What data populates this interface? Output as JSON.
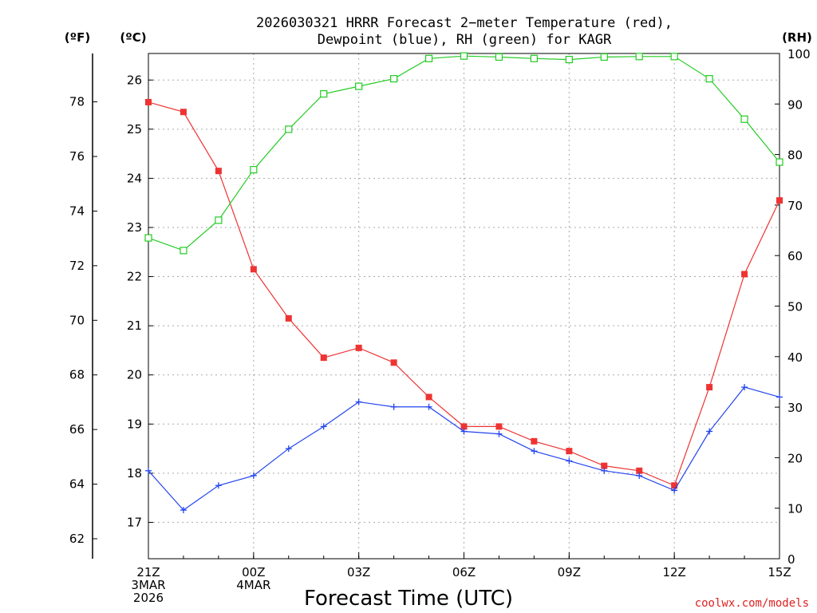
{
  "chart_data": {
    "type": "line",
    "title_lines": [
      "2026030321 HRRR Forecast 2−meter Temperature (red),",
      "Dewpoint (blue), RH (green) for KAGR"
    ],
    "unit_labels": {
      "fahrenheit": "(ºF)",
      "celsius": "(ºC)",
      "rh": "(RH)"
    },
    "xlabel": "Forecast Time (UTC)",
    "credit": "coolwx.com/models",
    "x": [
      0,
      1,
      2,
      3,
      4,
      5,
      6,
      7,
      8,
      9,
      10,
      11,
      12,
      13,
      14,
      15,
      16,
      17,
      18
    ],
    "x_ticks": [
      {
        "x": 0,
        "lines": [
          "21Z",
          "3MAR",
          "2026"
        ]
      },
      {
        "x": 3,
        "lines": [
          "00Z",
          "4MAR"
        ]
      },
      {
        "x": 6,
        "lines": [
          "03Z"
        ]
      },
      {
        "x": 9,
        "lines": [
          "06Z"
        ]
      },
      {
        "x": 12,
        "lines": [
          "09Z"
        ]
      },
      {
        "x": 15,
        "lines": [
          "12Z"
        ]
      },
      {
        "x": 18,
        "lines": [
          "15Z"
        ]
      }
    ],
    "celsius_range": [
      16.26,
      26.54
    ],
    "celsius_ticks": [
      17,
      18,
      19,
      20,
      21,
      22,
      23,
      24,
      25,
      26
    ],
    "fahrenheit_ticks": [
      62,
      64,
      66,
      68,
      70,
      72,
      74,
      76,
      78
    ],
    "rh_range": [
      0,
      100
    ],
    "rh_ticks": [
      0,
      10,
      20,
      30,
      40,
      50,
      60,
      70,
      80,
      90,
      100
    ],
    "series": [
      {
        "name": "Temperature",
        "units": "C",
        "color": "#ee3333",
        "marker": "filled-square",
        "values": [
          25.55,
          25.35,
          24.15,
          22.15,
          21.15,
          20.35,
          20.55,
          20.25,
          19.55,
          18.95,
          18.95,
          18.65,
          18.45,
          18.15,
          18.05,
          17.75,
          19.75,
          22.05,
          23.55
        ]
      },
      {
        "name": "Dewpoint",
        "units": "C",
        "color": "#2244ee",
        "marker": "plus",
        "values": [
          18.05,
          17.25,
          17.75,
          17.95,
          18.5,
          18.95,
          19.45,
          19.35,
          19.35,
          18.85,
          18.8,
          18.45,
          18.25,
          18.05,
          17.95,
          17.65,
          18.85,
          19.75,
          19.55
        ]
      },
      {
        "name": "RH",
        "units": "%",
        "color": "#22cc22",
        "marker": "open-square",
        "values": [
          63.5,
          61,
          67,
          77,
          85,
          92,
          93.5,
          95,
          99,
          99.5,
          99.3,
          99,
          98.8,
          99.3,
          99.4,
          99.4,
          95,
          87,
          78.5
        ]
      }
    ]
  }
}
